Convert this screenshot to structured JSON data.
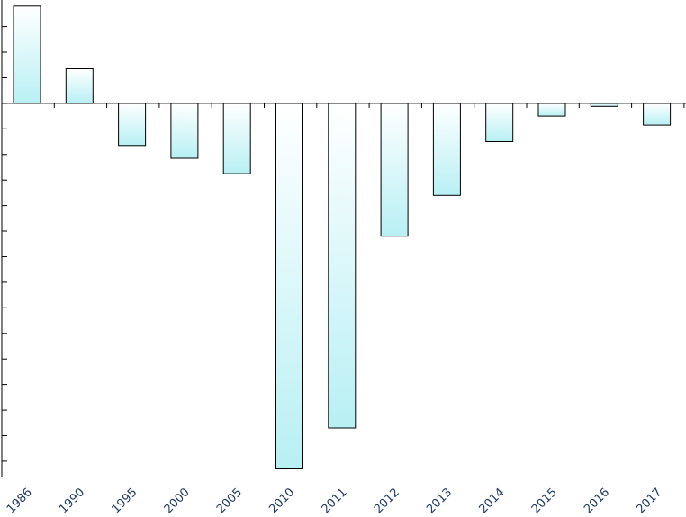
{
  "chart_data": {
    "type": "bar",
    "title": "",
    "xlabel": "",
    "ylabel": "",
    "categories": [
      "1986",
      "1990",
      "1995",
      "2000",
      "2005",
      "2010",
      "2011",
      "2012",
      "2013",
      "2014",
      "2015",
      "2016",
      "2017"
    ],
    "values": [
      3.8,
      1.35,
      -1.65,
      -2.15,
      -2.75,
      -14.3,
      -12.7,
      -5.2,
      -3.6,
      -1.5,
      -0.5,
      -0.12,
      -0.85
    ],
    "ylim": [
      -14.6,
      3.9
    ],
    "y_tick_step": 1,
    "grid": false,
    "legend": "none",
    "colors": {
      "bar_top": "#ffffff",
      "bar_bottom": "#b8f0f4",
      "bar_stroke": "#000000",
      "axis": "#000000",
      "tick_label": "#1f3b66"
    }
  }
}
